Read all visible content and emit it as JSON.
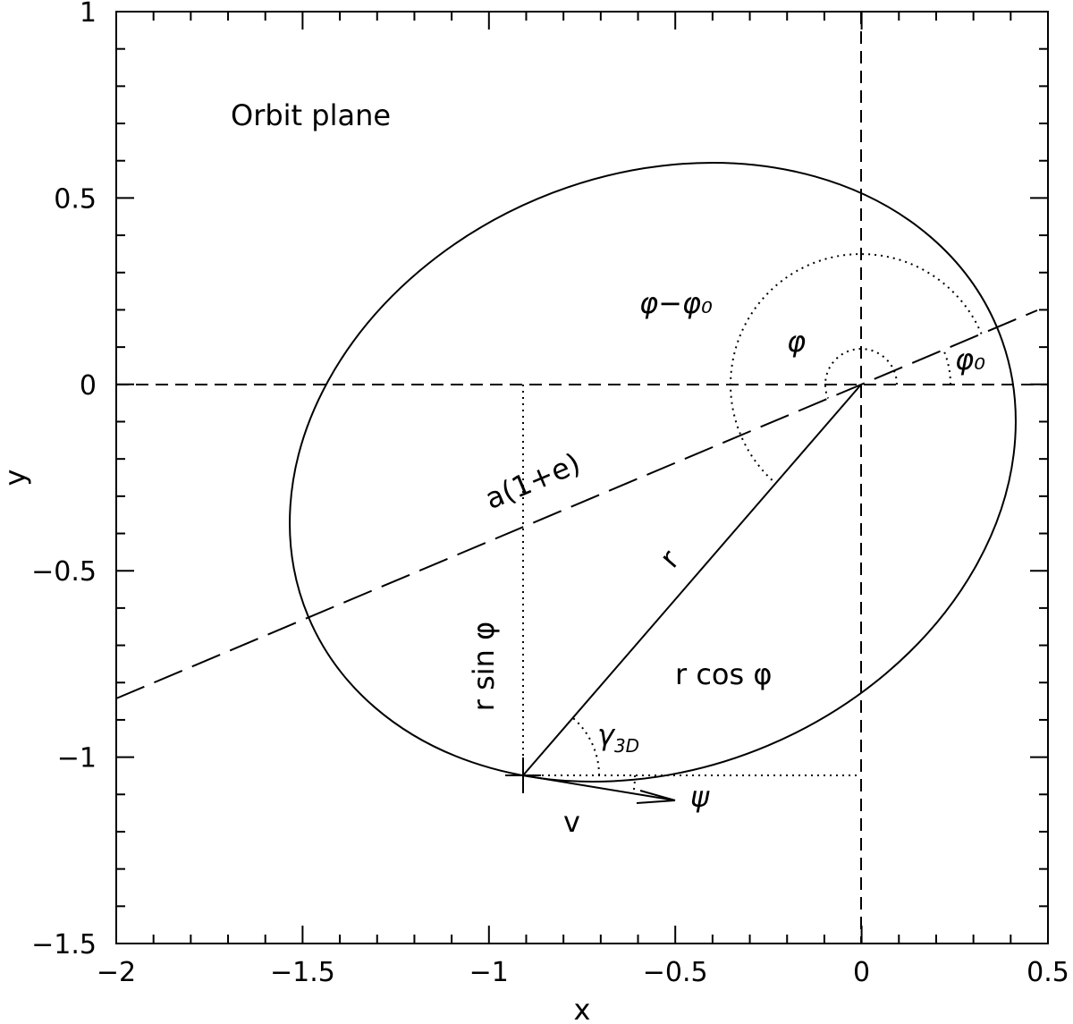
{
  "chart_data": {
    "type": "diagram",
    "xlabel": "x",
    "ylabel": "y",
    "xlim": [
      -2,
      0.5
    ],
    "ylim": [
      -1.5,
      1
    ],
    "xticks": [
      {
        "value": -2,
        "label": "−2"
      },
      {
        "value": -1.5,
        "label": "−1.5"
      },
      {
        "value": -1,
        "label": "−1"
      },
      {
        "value": -0.5,
        "label": "−0.5"
      },
      0,
      0.5
    ],
    "yticks": [
      {
        "value": -1.5,
        "label": "−1.5"
      },
      {
        "value": -1,
        "label": "−1"
      },
      {
        "value": -0.5,
        "label": "−0.5"
      },
      0,
      0.5,
      1
    ],
    "annotations": {
      "plane": "Orbit plane",
      "phi_minus_phi0": "φ−φ₀",
      "phi": "φ",
      "phi0": "φ₀",
      "major_axis": "a(1+e)",
      "radius": "r",
      "r_sin": "r sin φ",
      "r_cos": "r cos φ",
      "gamma": {
        "symbol": "γ",
        "subscript": "3D"
      },
      "psi": "ψ",
      "velocity": "v"
    }
  }
}
